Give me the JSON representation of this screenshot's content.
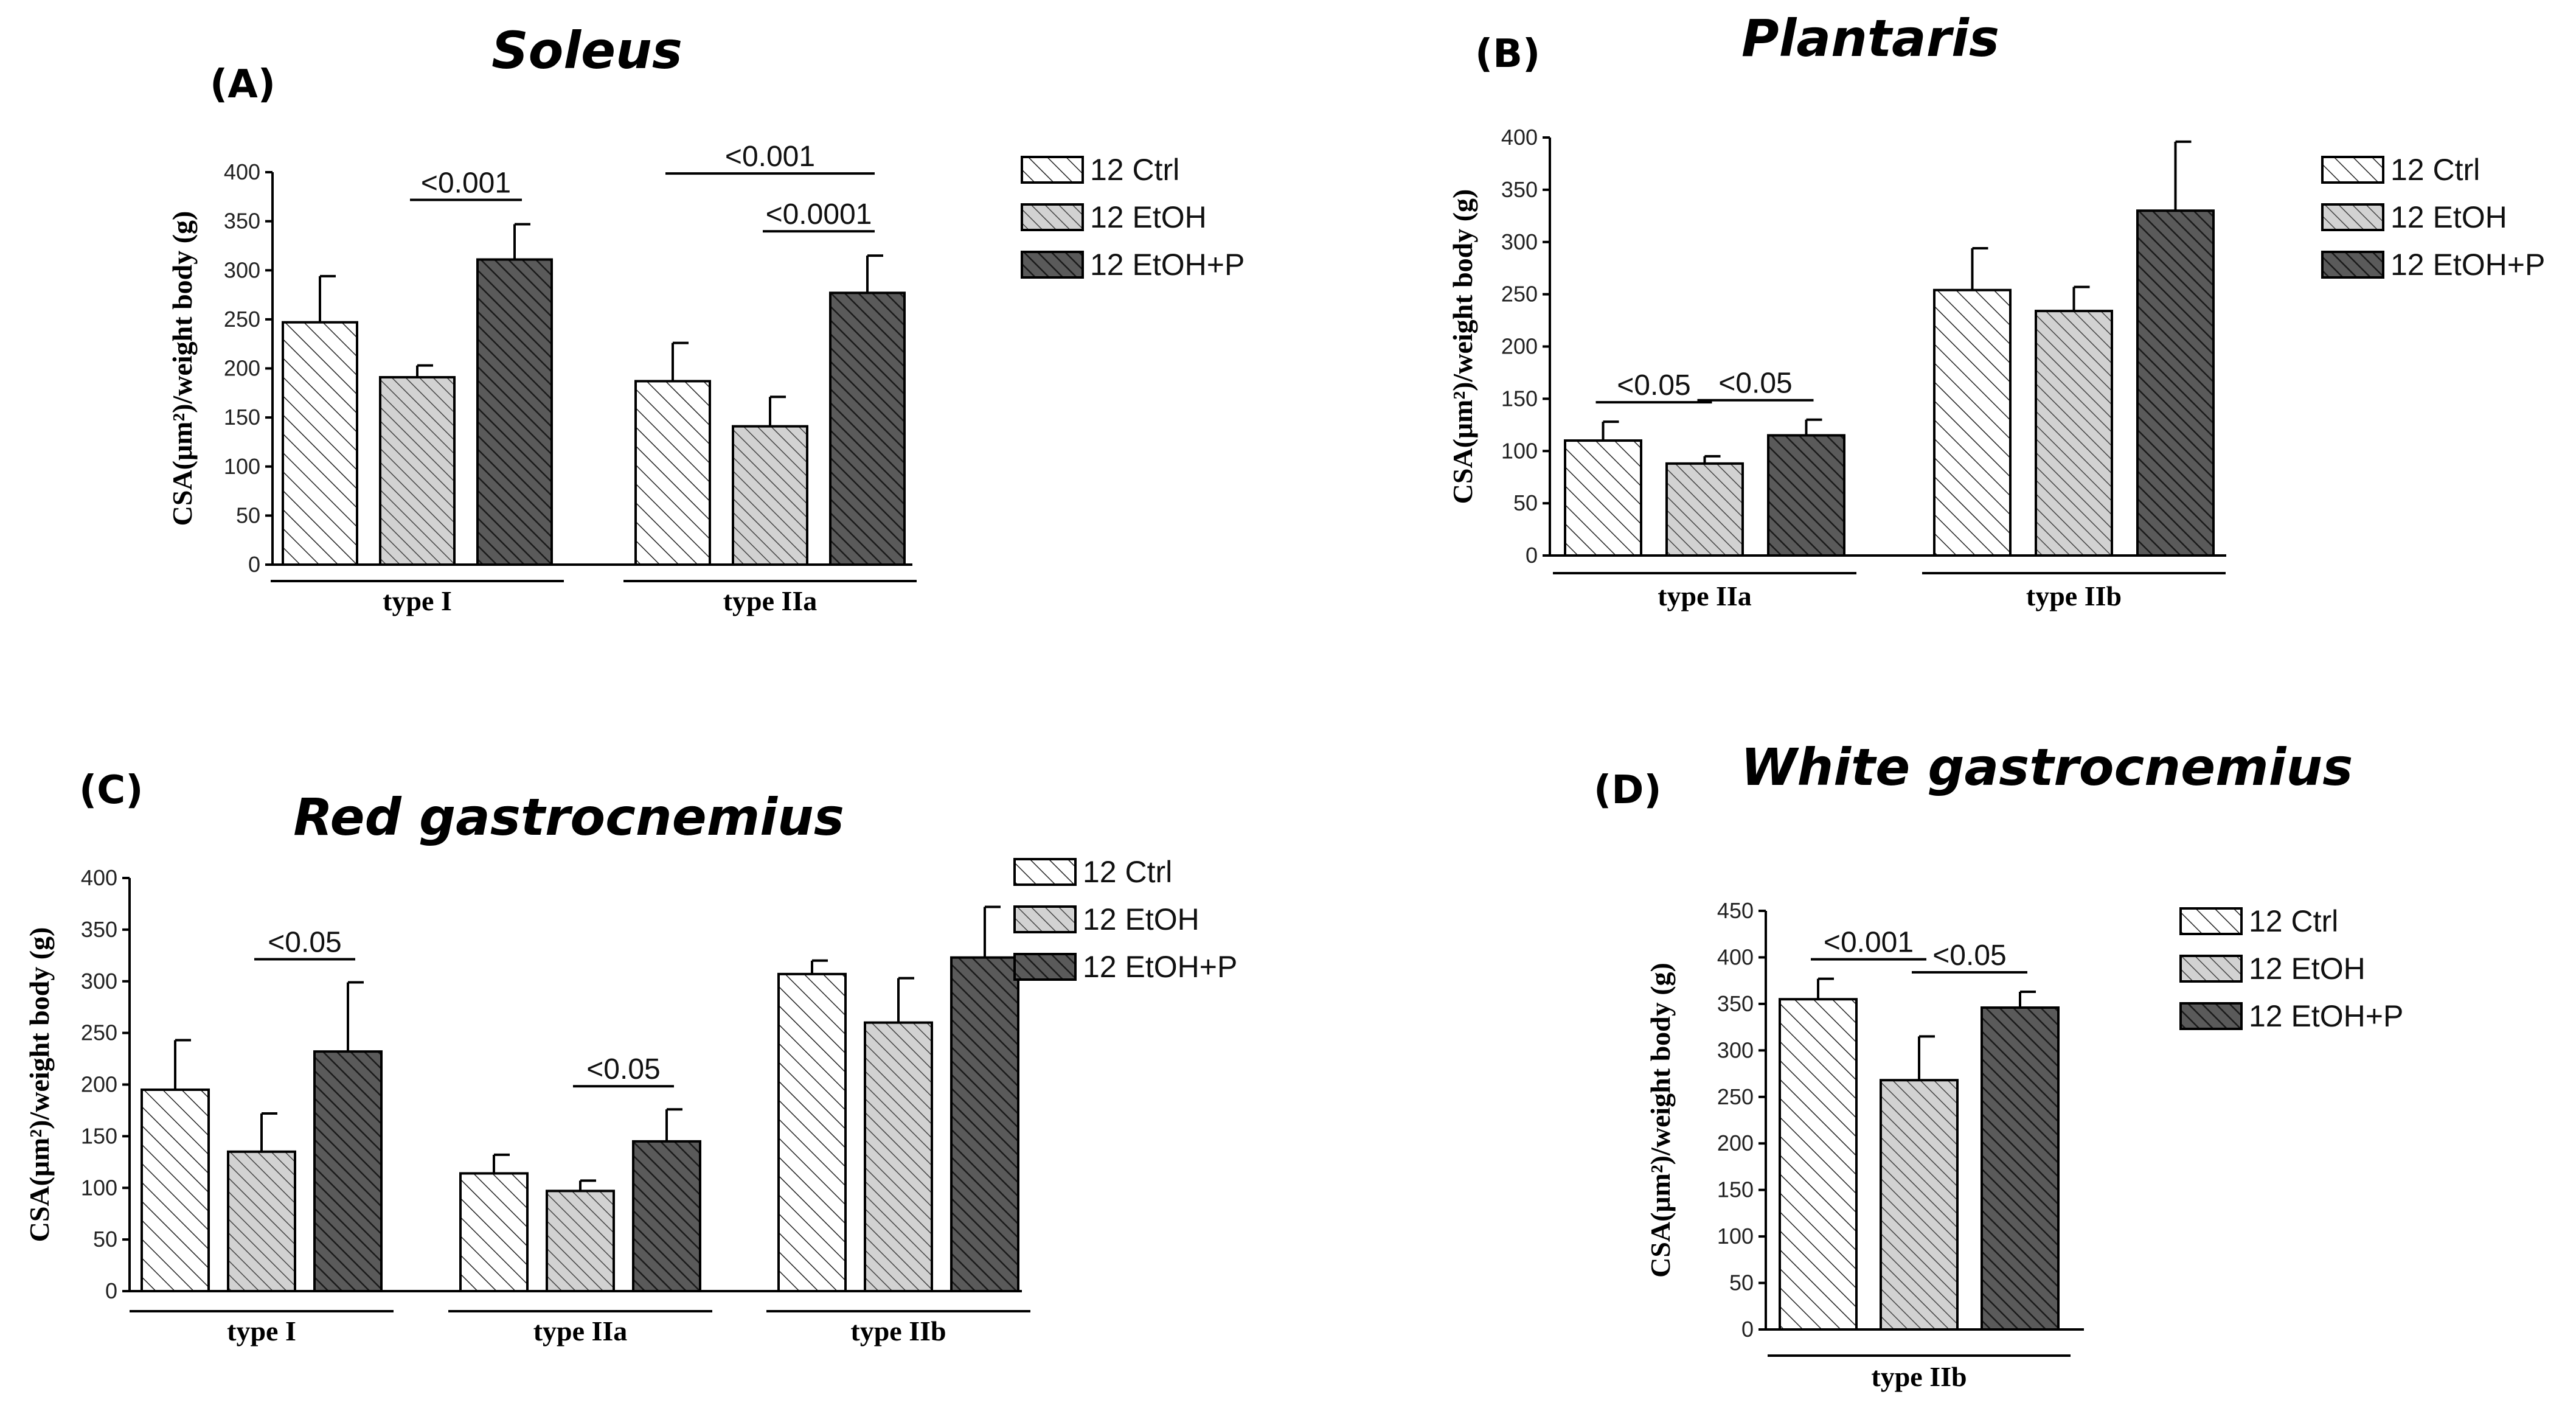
{
  "chart_data": [
    {
      "type": "bar",
      "panel": "(A)",
      "title": "Soleus",
      "xlabel": "",
      "ylabel": "CSA(μm²)/weight body (g)",
      "ylim": [
        0,
        400
      ],
      "yticks": [
        0,
        50,
        100,
        150,
        200,
        250,
        300,
        350,
        400
      ],
      "categories": [
        "type I",
        "type IIa"
      ],
      "series": [
        {
          "name": "12 Ctrl",
          "values": [
            247,
            187
          ],
          "errors": [
            47,
            39
          ]
        },
        {
          "name": "12 EtOH",
          "values": [
            191,
            141
          ],
          "errors": [
            12,
            30
          ]
        },
        {
          "name": "12 EtOH+P",
          "values": [
            311,
            277
          ],
          "errors": [
            36,
            38
          ]
        }
      ],
      "annotations": [
        {
          "label": "<0.001",
          "category": 0,
          "from_series": 1,
          "to_series": 2,
          "level": 0
        },
        {
          "label": "<0.0001",
          "category": 1,
          "from_series": 1,
          "to_series": 2,
          "level": 0
        },
        {
          "label": "<0.001",
          "category": 1,
          "from_series": 0,
          "to_series": 2,
          "level": 1
        }
      ]
    },
    {
      "type": "bar",
      "panel": "(B)",
      "title": "Plantaris",
      "xlabel": "",
      "ylabel": "CSA(μm²)/weight body (g)",
      "ylim": [
        0,
        400
      ],
      "yticks": [
        0,
        50,
        100,
        150,
        200,
        250,
        300,
        350,
        400
      ],
      "categories": [
        "type IIa",
        "type IIb"
      ],
      "series": [
        {
          "name": "12 Ctrl",
          "values": [
            110,
            254
          ],
          "errors": [
            18,
            40
          ]
        },
        {
          "name": "12 EtOH",
          "values": [
            88,
            234
          ],
          "errors": [
            7,
            23
          ]
        },
        {
          "name": "12 EtOH+P",
          "values": [
            115,
            330
          ],
          "errors": [
            15,
            66
          ]
        }
      ],
      "annotations": [
        {
          "label": "<0.05",
          "category": 0,
          "from_series": 0,
          "to_series": 1,
          "level": 0
        },
        {
          "label": "<0.05",
          "category": 0,
          "from_series": 1,
          "to_series": 2,
          "level": 0
        }
      ]
    },
    {
      "type": "bar",
      "panel": "(C)",
      "title": "Red gastrocnemius",
      "xlabel": "",
      "ylabel": "CSA(μm²)/weight body (g)",
      "ylim": [
        0,
        400
      ],
      "yticks": [
        0,
        50,
        100,
        150,
        200,
        250,
        300,
        350,
        400
      ],
      "categories": [
        "type I",
        "type IIa",
        "type IIb"
      ],
      "series": [
        {
          "name": "12 Ctrl",
          "values": [
            195,
            114,
            307
          ],
          "errors": [
            48,
            18,
            13
          ]
        },
        {
          "name": "12 EtOH",
          "values": [
            135,
            97,
            260
          ],
          "errors": [
            37,
            10,
            43
          ]
        },
        {
          "name": "12 EtOH+P",
          "values": [
            232,
            145,
            323
          ],
          "errors": [
            67,
            31,
            49
          ]
        }
      ],
      "annotations": [
        {
          "label": "<0.05",
          "category": 0,
          "from_series": 1,
          "to_series": 2,
          "level": 0
        },
        {
          "label": "<0.05",
          "category": 1,
          "from_series": 1,
          "to_series": 2,
          "level": 0
        }
      ]
    },
    {
      "type": "bar",
      "panel": "(D)",
      "title": "White gastrocnemius",
      "xlabel": "",
      "ylabel": "CSA(μm²)/weight body (g)",
      "ylim": [
        0,
        450
      ],
      "yticks": [
        0,
        50,
        100,
        150,
        200,
        250,
        300,
        350,
        400,
        450
      ],
      "categories": [
        "type IIb"
      ],
      "series": [
        {
          "name": "12 Ctrl",
          "values": [
            355
          ],
          "errors": [
            22
          ]
        },
        {
          "name": "12 EtOH",
          "values": [
            268
          ],
          "errors": [
            47
          ]
        },
        {
          "name": "12 EtOH+P",
          "values": [
            346
          ],
          "errors": [
            17
          ]
        }
      ],
      "annotations": [
        {
          "label": "<0.001",
          "category": 0,
          "from_series": 0,
          "to_series": 1,
          "level": 0
        },
        {
          "label": "<0.05",
          "category": 0,
          "from_series": 1,
          "to_series": 2,
          "level": 0
        }
      ]
    }
  ],
  "colors": {
    "axis": "#000000",
    "ctrl_fill": "#ffffff",
    "etoh_fill": "#d2d2d2",
    "etohp_fill": "#5a5a5a"
  }
}
